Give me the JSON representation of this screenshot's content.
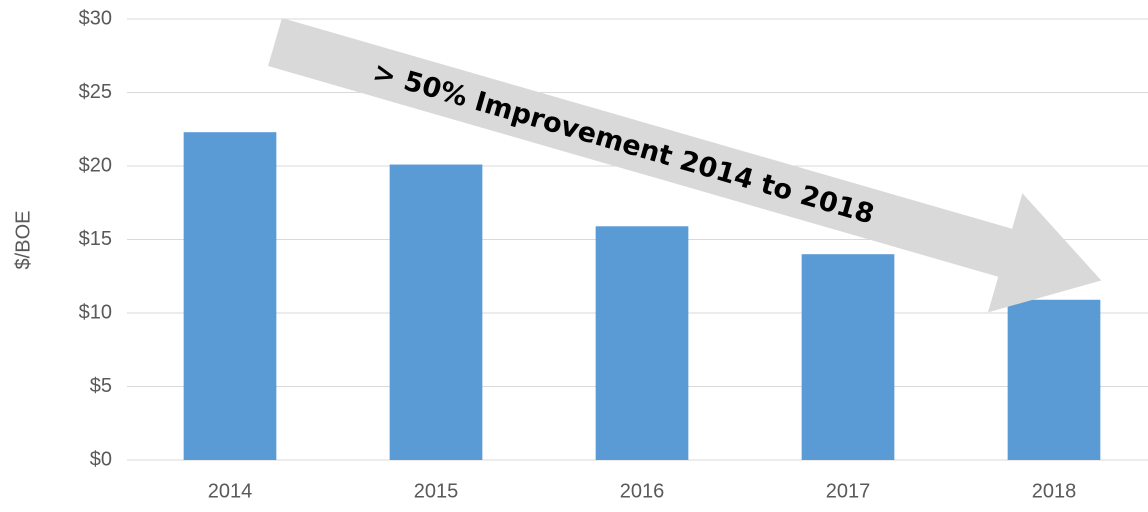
{
  "chart_data": {
    "type": "bar",
    "y_label": "$/BOE",
    "annotation": "> 50% Improvement 2014 to 2018",
    "categories": [
      "2014",
      "2015",
      "2016",
      "2017",
      "2018"
    ],
    "values": [
      22.3,
      20.1,
      15.9,
      14.0,
      10.9
    ],
    "color": "#5b9bd5",
    "ylim": [
      0,
      30
    ],
    "yticks": [
      {
        "value": 0,
        "label": "$0"
      },
      {
        "value": 5,
        "label": "$5"
      },
      {
        "value": 10,
        "label": "$10"
      },
      {
        "value": 15,
        "label": "$15"
      },
      {
        "value": 20,
        "label": "$20"
      },
      {
        "value": 25,
        "label": "$25"
      },
      {
        "value": 30,
        "label": "$30"
      }
    ],
    "grid": true
  }
}
